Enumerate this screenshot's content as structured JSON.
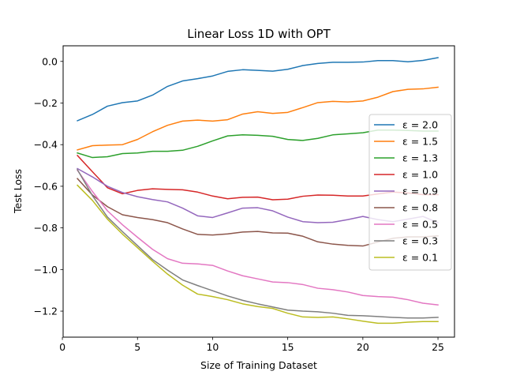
{
  "chart_data": {
    "type": "line",
    "title": "Linear Loss 1D with OPT",
    "xlabel": "Size of Training Dataset",
    "ylabel": "Test Loss",
    "xlim": [
      0.05,
      26.1
    ],
    "ylim": [
      -1.325,
      0.075
    ],
    "xticks": [
      0,
      5,
      10,
      15,
      20,
      25
    ],
    "yticks": [
      0.0,
      -0.2,
      -0.4,
      -0.6,
      -0.8,
      -1.0,
      -1.2
    ],
    "ytick_labels": [
      "0.0",
      "−0.2",
      "−0.4",
      "−0.6",
      "−0.8",
      "−1.0",
      "−1.2"
    ],
    "grid": false,
    "legend_position": "center-right",
    "x": [
      1,
      2,
      3,
      4,
      5,
      6,
      7,
      8,
      9,
      10,
      11,
      12,
      13,
      14,
      15,
      16,
      17,
      18,
      19,
      20,
      21,
      22,
      23,
      24,
      25
    ],
    "series": [
      {
        "name": "ε = 2.0",
        "color": "#1f77b4",
        "values": [
          -0.285,
          -0.255,
          -0.215,
          -0.198,
          -0.19,
          -0.162,
          -0.12,
          -0.094,
          -0.083,
          -0.07,
          -0.048,
          -0.04,
          -0.043,
          -0.047,
          -0.038,
          -0.02,
          -0.01,
          -0.004,
          -0.004,
          -0.003,
          0.004,
          0.004,
          -0.002,
          0.005,
          0.018
        ]
      },
      {
        "name": "ε = 1.5",
        "color": "#ff7f0e",
        "values": [
          -0.425,
          -0.405,
          -0.402,
          -0.4,
          -0.375,
          -0.338,
          -0.307,
          -0.287,
          -0.282,
          -0.287,
          -0.28,
          -0.253,
          -0.242,
          -0.25,
          -0.245,
          -0.222,
          -0.198,
          -0.192,
          -0.195,
          -0.19,
          -0.172,
          -0.145,
          -0.134,
          -0.132,
          -0.124
        ]
      },
      {
        "name": "ε = 1.3",
        "color": "#2ca02c",
        "values": [
          -0.44,
          -0.462,
          -0.458,
          -0.443,
          -0.44,
          -0.432,
          -0.432,
          -0.427,
          -0.408,
          -0.382,
          -0.358,
          -0.353,
          -0.355,
          -0.36,
          -0.375,
          -0.38,
          -0.37,
          -0.353,
          -0.348,
          -0.343,
          -0.33,
          -0.33,
          -0.332,
          -0.335,
          -0.335
        ]
      },
      {
        "name": "ε = 1.0",
        "color": "#d62728",
        "values": [
          -0.452,
          -0.53,
          -0.607,
          -0.636,
          -0.62,
          -0.612,
          -0.615,
          -0.617,
          -0.628,
          -0.647,
          -0.66,
          -0.653,
          -0.652,
          -0.665,
          -0.662,
          -0.648,
          -0.642,
          -0.643,
          -0.647,
          -0.647,
          -0.637,
          -0.628,
          -0.632,
          -0.64,
          -0.64
        ]
      },
      {
        "name": "ε = 0.9",
        "color": "#9467bd",
        "values": [
          -0.515,
          -0.555,
          -0.6,
          -0.63,
          -0.65,
          -0.664,
          -0.675,
          -0.705,
          -0.742,
          -0.75,
          -0.728,
          -0.705,
          -0.703,
          -0.718,
          -0.748,
          -0.77,
          -0.775,
          -0.773,
          -0.76,
          -0.745,
          -0.76,
          -0.77,
          -0.758,
          -0.745,
          -0.775
        ]
      },
      {
        "name": "ε = 0.8",
        "color": "#8c564b",
        "values": [
          -0.563,
          -0.642,
          -0.698,
          -0.737,
          -0.75,
          -0.76,
          -0.775,
          -0.805,
          -0.831,
          -0.834,
          -0.829,
          -0.82,
          -0.817,
          -0.824,
          -0.825,
          -0.84,
          -0.867,
          -0.878,
          -0.884,
          -0.887,
          -0.868,
          -0.85,
          -0.843,
          -0.843,
          -0.838
        ]
      },
      {
        "name": "ε = 0.5",
        "color": "#e377c2",
        "values": [
          -0.523,
          -0.625,
          -0.718,
          -0.785,
          -0.845,
          -0.903,
          -0.948,
          -0.97,
          -0.973,
          -0.98,
          -1.007,
          -1.03,
          -1.045,
          -1.06,
          -1.063,
          -1.072,
          -1.09,
          -1.097,
          -1.108,
          -1.125,
          -1.13,
          -1.133,
          -1.145,
          -1.162,
          -1.17
        ]
      },
      {
        "name": "ε = 0.3",
        "color": "#7f7f7f",
        "values": [
          -0.52,
          -0.645,
          -0.748,
          -0.818,
          -0.885,
          -0.952,
          -1.003,
          -1.05,
          -1.077,
          -1.102,
          -1.127,
          -1.148,
          -1.165,
          -1.18,
          -1.195,
          -1.2,
          -1.203,
          -1.21,
          -1.22,
          -1.222,
          -1.226,
          -1.23,
          -1.233,
          -1.233,
          -1.23
        ]
      },
      {
        "name": "ε = 0.1",
        "color": "#bcbd22",
        "values": [
          -0.595,
          -0.668,
          -0.758,
          -0.83,
          -0.895,
          -0.96,
          -1.022,
          -1.075,
          -1.118,
          -1.13,
          -1.145,
          -1.165,
          -1.178,
          -1.187,
          -1.21,
          -1.228,
          -1.23,
          -1.228,
          -1.237,
          -1.248,
          -1.258,
          -1.258,
          -1.253,
          -1.25,
          -1.25
        ]
      }
    ]
  }
}
